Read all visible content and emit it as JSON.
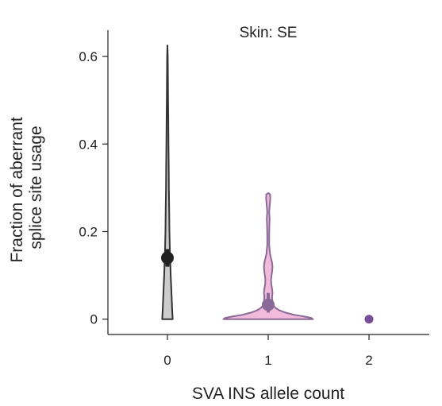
{
  "chart_data": {
    "type": "violin",
    "title": "Skin: SE",
    "xlabel": "SVA INS allele count",
    "ylabel": [
      "Fraction of aberrant",
      "splice site usage"
    ],
    "categories": [
      "0",
      "1",
      "2"
    ],
    "ylim": [
      -0.035,
      0.66
    ],
    "yticks": [
      0,
      0.2,
      0.4,
      0.6
    ],
    "ytick_labels": [
      "0",
      "0.2",
      "0.4",
      "0.6"
    ],
    "grid": false,
    "series": [
      {
        "category": "0",
        "color": "#cccccc",
        "stroke": "#333333",
        "point_color": "#222222",
        "mean": 0.14,
        "ci": [
          0.12,
          0.16
        ],
        "iqr": [
          0.12,
          0.16
        ],
        "profile": [
          [
            0.0,
            0.055
          ],
          [
            0.02,
            0.05
          ],
          [
            0.05,
            0.044
          ],
          [
            0.08,
            0.038
          ],
          [
            0.1,
            0.034
          ],
          [
            0.13,
            0.03
          ],
          [
            0.16,
            0.025
          ],
          [
            0.2,
            0.021
          ],
          [
            0.25,
            0.018
          ],
          [
            0.3,
            0.015
          ],
          [
            0.35,
            0.013
          ],
          [
            0.4,
            0.011
          ],
          [
            0.45,
            0.009
          ],
          [
            0.5,
            0.007
          ],
          [
            0.55,
            0.005
          ],
          [
            0.6,
            0.003
          ],
          [
            0.625,
            0.0
          ]
        ]
      },
      {
        "category": "1",
        "color": "#f2bbdc",
        "stroke": "#8a6a98",
        "point_color": "#8a6a98",
        "mean": 0.033,
        "ci": [
          0.026,
          0.04
        ],
        "iqr": [
          0.015,
          0.06
        ],
        "profile": [
          [
            0.0,
            0.47
          ],
          [
            0.003,
            0.45
          ],
          [
            0.006,
            0.38
          ],
          [
            0.01,
            0.27
          ],
          [
            0.015,
            0.18
          ],
          [
            0.02,
            0.12
          ],
          [
            0.025,
            0.08
          ],
          [
            0.03,
            0.06
          ],
          [
            0.04,
            0.045
          ],
          [
            0.05,
            0.04
          ],
          [
            0.06,
            0.045
          ],
          [
            0.07,
            0.04
          ],
          [
            0.08,
            0.032
          ],
          [
            0.09,
            0.03
          ],
          [
            0.1,
            0.035
          ],
          [
            0.11,
            0.042
          ],
          [
            0.12,
            0.045
          ],
          [
            0.13,
            0.04
          ],
          [
            0.14,
            0.028
          ],
          [
            0.15,
            0.018
          ],
          [
            0.17,
            0.01
          ],
          [
            0.19,
            0.01
          ],
          [
            0.21,
            0.012
          ],
          [
            0.23,
            0.015
          ],
          [
            0.245,
            0.01
          ],
          [
            0.26,
            0.016
          ],
          [
            0.275,
            0.022
          ],
          [
            0.285,
            0.02
          ],
          [
            0.288,
            0.0
          ]
        ]
      },
      {
        "category": "2",
        "color": "#7a4f9a",
        "stroke": "#7a4f9a",
        "point_color": "#7a4f9a",
        "mean": 0.0,
        "profile": []
      }
    ]
  }
}
